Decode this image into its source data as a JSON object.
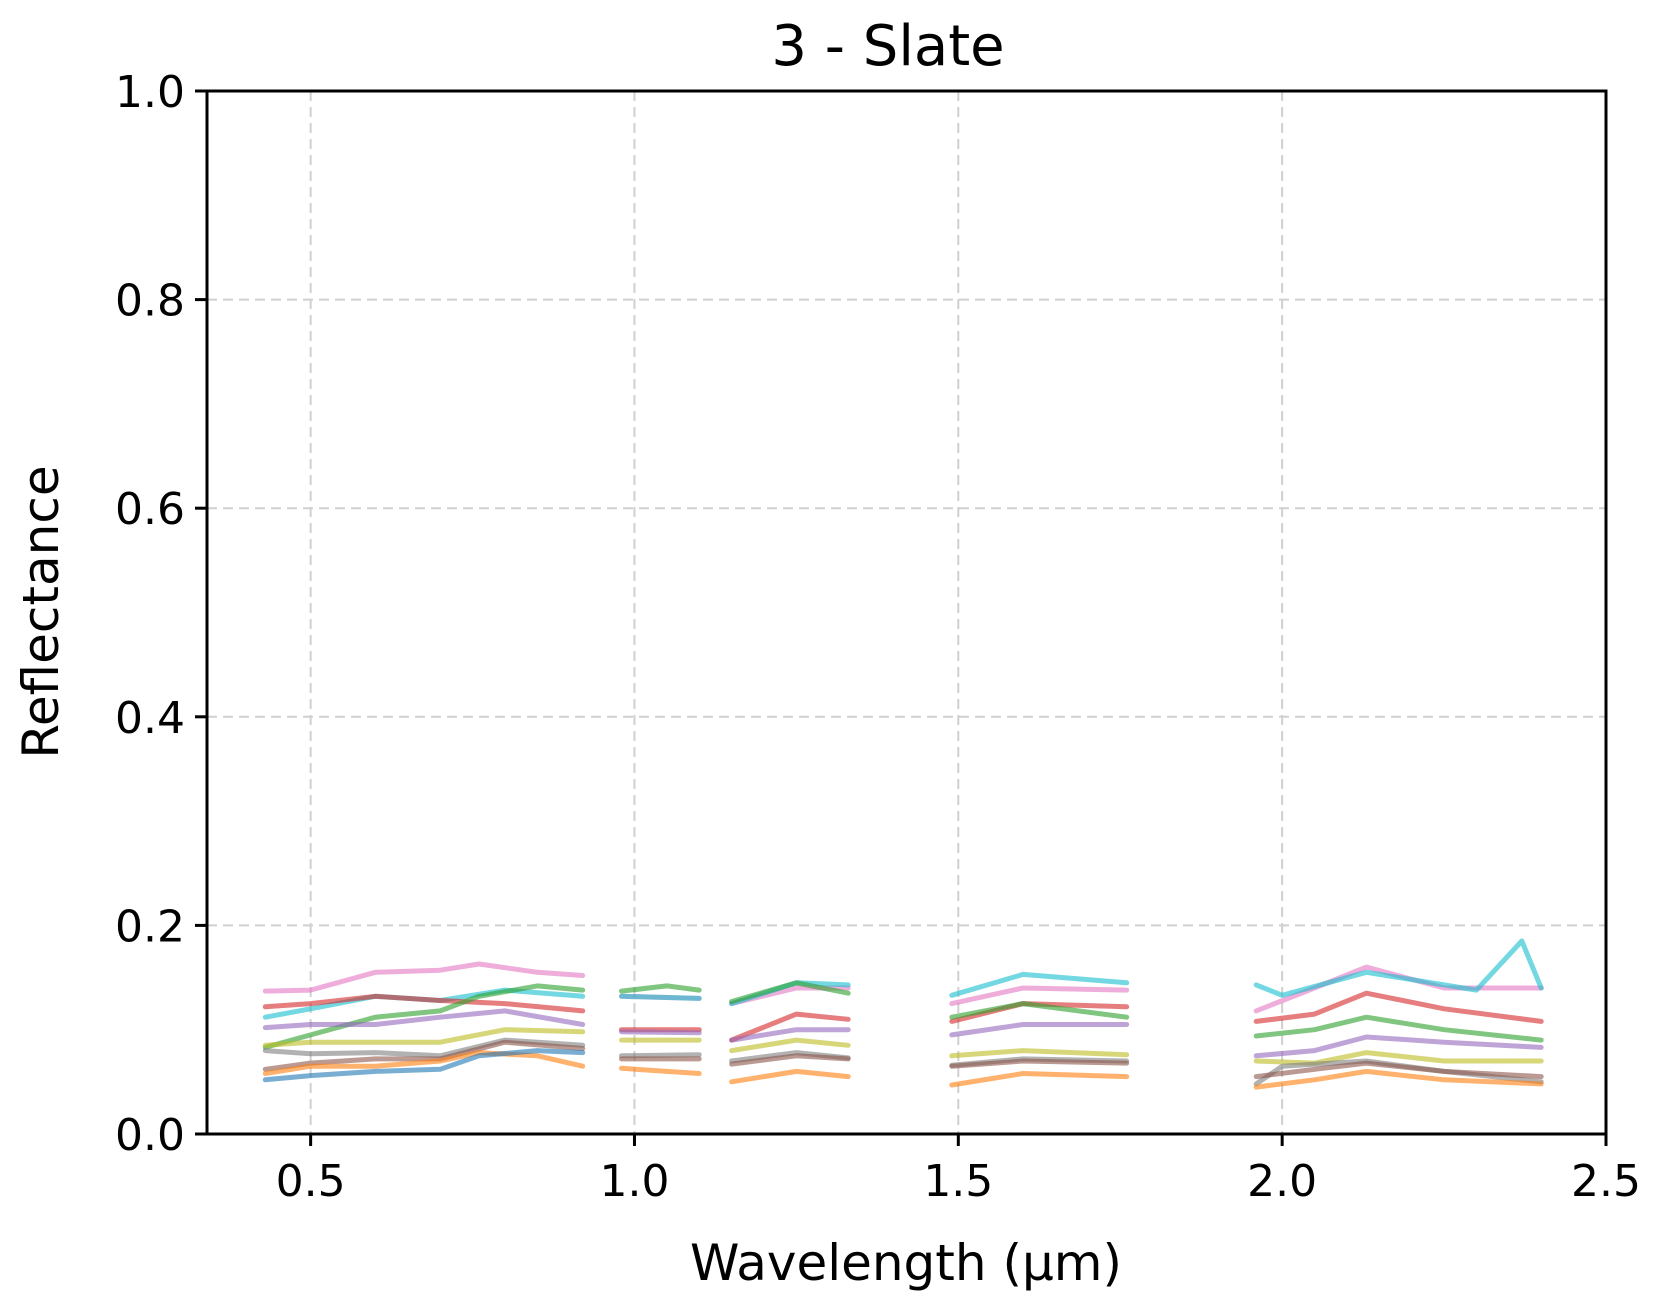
{
  "chart_data": {
    "type": "line",
    "title": "3 - Slate",
    "xlabel": "Wavelength (μm)",
    "ylabel": "Reflectance",
    "xlim": [
      0.34,
      2.5
    ],
    "ylim": [
      0.0,
      1.0
    ],
    "xticks": [
      0.5,
      1.0,
      1.5,
      2.0,
      2.5
    ],
    "xtick_labels": [
      "0.5",
      "1.0",
      "1.5",
      "2.0",
      "2.5"
    ],
    "yticks": [
      0.0,
      0.2,
      0.4,
      0.6,
      0.8,
      1.0
    ],
    "ytick_labels": [
      "0.0",
      "0.2",
      "0.4",
      "0.6",
      "0.8",
      "1.0"
    ],
    "grid": true,
    "legend": "none",
    "segments": [
      [
        0.43,
        0.92
      ],
      [
        0.98,
        1.1
      ],
      [
        1.15,
        1.33
      ],
      [
        1.49,
        1.76
      ],
      [
        1.96,
        2.4
      ]
    ],
    "series": [
      {
        "color": "#e377c2",
        "values": [
          [
            0.43,
            0.137
          ],
          [
            0.5,
            0.138
          ],
          [
            0.6,
            0.155
          ],
          [
            0.7,
            0.157
          ],
          [
            0.76,
            0.163
          ],
          [
            0.85,
            0.155
          ],
          [
            0.92,
            0.152
          ],
          [
            0.98,
            0.132
          ],
          [
            1.1,
            0.13
          ],
          [
            1.15,
            0.125
          ],
          [
            1.25,
            0.14
          ],
          [
            1.33,
            0.14
          ],
          [
            1.49,
            0.125
          ],
          [
            1.6,
            0.14
          ],
          [
            1.76,
            0.138
          ],
          [
            1.96,
            0.118
          ],
          [
            2.05,
            0.14
          ],
          [
            2.13,
            0.16
          ],
          [
            2.25,
            0.14
          ],
          [
            2.4,
            0.14
          ]
        ]
      },
      {
        "color": "#17becf",
        "values": [
          [
            0.43,
            0.112
          ],
          [
            0.5,
            0.12
          ],
          [
            0.6,
            0.132
          ],
          [
            0.7,
            0.128
          ],
          [
            0.8,
            0.138
          ],
          [
            0.92,
            0.132
          ],
          [
            0.98,
            0.132
          ],
          [
            1.1,
            0.13
          ],
          [
            1.15,
            0.125
          ],
          [
            1.25,
            0.145
          ],
          [
            1.33,
            0.143
          ],
          [
            1.49,
            0.133
          ],
          [
            1.6,
            0.153
          ],
          [
            1.76,
            0.145
          ],
          [
            1.96,
            0.143
          ],
          [
            2.0,
            0.133
          ],
          [
            2.13,
            0.155
          ],
          [
            2.3,
            0.138
          ],
          [
            2.37,
            0.185
          ],
          [
            2.4,
            0.14
          ]
        ]
      },
      {
        "color": "#d62728",
        "values": [
          [
            0.43,
            0.122
          ],
          [
            0.5,
            0.125
          ],
          [
            0.6,
            0.132
          ],
          [
            0.7,
            0.128
          ],
          [
            0.8,
            0.125
          ],
          [
            0.92,
            0.118
          ],
          [
            0.98,
            0.1
          ],
          [
            1.1,
            0.1
          ],
          [
            1.15,
            0.09
          ],
          [
            1.25,
            0.115
          ],
          [
            1.33,
            0.11
          ],
          [
            1.49,
            0.108
          ],
          [
            1.6,
            0.125
          ],
          [
            1.76,
            0.122
          ],
          [
            1.96,
            0.108
          ],
          [
            2.05,
            0.115
          ],
          [
            2.13,
            0.135
          ],
          [
            2.25,
            0.12
          ],
          [
            2.4,
            0.108
          ]
        ]
      },
      {
        "color": "#2ca02c",
        "values": [
          [
            0.43,
            0.083
          ],
          [
            0.5,
            0.095
          ],
          [
            0.6,
            0.112
          ],
          [
            0.7,
            0.118
          ],
          [
            0.76,
            0.132
          ],
          [
            0.85,
            0.142
          ],
          [
            0.92,
            0.138
          ],
          [
            0.98,
            0.137
          ],
          [
            1.05,
            0.142
          ],
          [
            1.1,
            0.138
          ],
          [
            1.15,
            0.127
          ],
          [
            1.25,
            0.145
          ],
          [
            1.33,
            0.135
          ],
          [
            1.49,
            0.112
          ],
          [
            1.6,
            0.125
          ],
          [
            1.76,
            0.112
          ],
          [
            1.96,
            0.094
          ],
          [
            2.05,
            0.1
          ],
          [
            2.13,
            0.112
          ],
          [
            2.25,
            0.1
          ],
          [
            2.4,
            0.09
          ]
        ]
      },
      {
        "color": "#9467bd",
        "values": [
          [
            0.43,
            0.102
          ],
          [
            0.5,
            0.105
          ],
          [
            0.6,
            0.105
          ],
          [
            0.7,
            0.112
          ],
          [
            0.8,
            0.118
          ],
          [
            0.92,
            0.105
          ],
          [
            0.98,
            0.098
          ],
          [
            1.1,
            0.097
          ],
          [
            1.15,
            0.09
          ],
          [
            1.25,
            0.1
          ],
          [
            1.33,
            0.1
          ],
          [
            1.49,
            0.095
          ],
          [
            1.6,
            0.105
          ],
          [
            1.76,
            0.105
          ],
          [
            1.96,
            0.075
          ],
          [
            2.05,
            0.08
          ],
          [
            2.13,
            0.093
          ],
          [
            2.25,
            0.088
          ],
          [
            2.4,
            0.083
          ]
        ]
      },
      {
        "color": "#bcbd22",
        "values": [
          [
            0.43,
            0.085
          ],
          [
            0.5,
            0.088
          ],
          [
            0.6,
            0.088
          ],
          [
            0.7,
            0.088
          ],
          [
            0.8,
            0.1
          ],
          [
            0.92,
            0.098
          ],
          [
            0.98,
            0.09
          ],
          [
            1.1,
            0.09
          ],
          [
            1.15,
            0.08
          ],
          [
            1.25,
            0.09
          ],
          [
            1.33,
            0.085
          ],
          [
            1.49,
            0.075
          ],
          [
            1.6,
            0.08
          ],
          [
            1.76,
            0.076
          ],
          [
            1.96,
            0.07
          ],
          [
            2.05,
            0.068
          ],
          [
            2.13,
            0.078
          ],
          [
            2.25,
            0.07
          ],
          [
            2.4,
            0.07
          ]
        ]
      },
      {
        "color": "#7f7f7f",
        "values": [
          [
            0.43,
            0.08
          ],
          [
            0.5,
            0.077
          ],
          [
            0.6,
            0.078
          ],
          [
            0.7,
            0.075
          ],
          [
            0.8,
            0.09
          ],
          [
            0.92,
            0.085
          ],
          [
            0.98,
            0.075
          ],
          [
            1.1,
            0.076
          ],
          [
            1.15,
            0.07
          ],
          [
            1.25,
            0.078
          ],
          [
            1.33,
            0.073
          ],
          [
            1.49,
            0.066
          ],
          [
            1.6,
            0.072
          ],
          [
            1.76,
            0.07
          ],
          [
            1.96,
            0.048
          ],
          [
            2.0,
            0.065
          ],
          [
            2.13,
            0.07
          ],
          [
            2.25,
            0.06
          ],
          [
            2.4,
            0.05
          ]
        ]
      },
      {
        "color": "#8c564b",
        "values": [
          [
            0.43,
            0.062
          ],
          [
            0.5,
            0.068
          ],
          [
            0.6,
            0.072
          ],
          [
            0.7,
            0.072
          ],
          [
            0.8,
            0.088
          ],
          [
            0.92,
            0.082
          ],
          [
            0.98,
            0.072
          ],
          [
            1.1,
            0.072
          ],
          [
            1.15,
            0.067
          ],
          [
            1.25,
            0.075
          ],
          [
            1.33,
            0.072
          ],
          [
            1.49,
            0.065
          ],
          [
            1.6,
            0.07
          ],
          [
            1.76,
            0.068
          ],
          [
            1.96,
            0.055
          ],
          [
            2.05,
            0.062
          ],
          [
            2.13,
            0.068
          ],
          [
            2.25,
            0.06
          ],
          [
            2.4,
            0.055
          ]
        ]
      },
      {
        "color": "#ff7f0e",
        "values": [
          [
            0.43,
            0.058
          ],
          [
            0.5,
            0.065
          ],
          [
            0.6,
            0.065
          ],
          [
            0.7,
            0.07
          ],
          [
            0.76,
            0.078
          ],
          [
            0.85,
            0.075
          ],
          [
            0.92,
            0.065
          ],
          [
            0.98,
            0.063
          ],
          [
            1.1,
            0.058
          ],
          [
            1.15,
            0.05
          ],
          [
            1.25,
            0.06
          ],
          [
            1.33,
            0.055
          ],
          [
            1.49,
            0.047
          ],
          [
            1.6,
            0.058
          ],
          [
            1.76,
            0.055
          ],
          [
            1.96,
            0.045
          ],
          [
            2.05,
            0.052
          ],
          [
            2.13,
            0.06
          ],
          [
            2.25,
            0.052
          ],
          [
            2.4,
            0.048
          ]
        ]
      },
      {
        "color": "#1f77b4",
        "values": [
          [
            0.43,
            0.052
          ],
          [
            0.5,
            0.056
          ],
          [
            0.6,
            0.06
          ],
          [
            0.7,
            0.062
          ],
          [
            0.76,
            0.075
          ],
          [
            0.85,
            0.08
          ],
          [
            0.92,
            0.078
          ]
        ]
      }
    ]
  }
}
